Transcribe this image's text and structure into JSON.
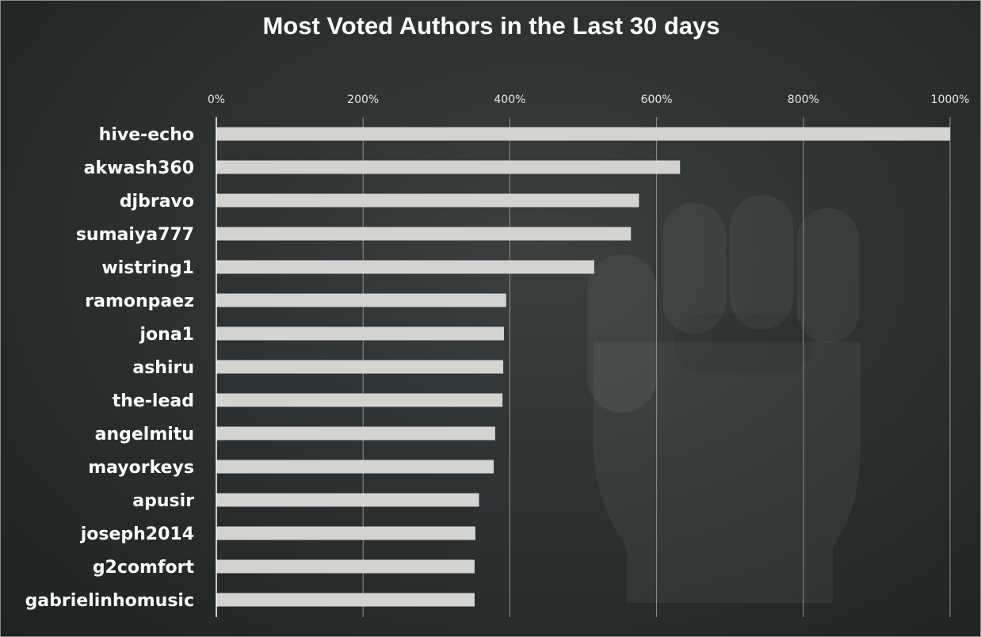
{
  "chart_data": {
    "type": "bar",
    "orientation": "horizontal",
    "title": "Most Voted Authors in the Last 30 days",
    "xlabel": "",
    "ylabel": "",
    "xlim": [
      0,
      1000
    ],
    "x_ticks": [
      0,
      200,
      400,
      600,
      800,
      1000
    ],
    "x_tick_labels": [
      "0%",
      "200%",
      "400%",
      "600%",
      "800%",
      "1000%"
    ],
    "grid": true,
    "categories": [
      "hive-echo",
      "akwash360",
      "djbravo",
      "sumaiya777",
      "wistring1",
      "ramonpaez",
      "jona1",
      "ashiru",
      "the-lead",
      "angelmitu",
      "mayorkeys",
      "apusir",
      "joseph2014",
      "g2comfort",
      "gabrielinhomusic"
    ],
    "values": [
      1000,
      632,
      576,
      565,
      515,
      395,
      392,
      391,
      390,
      380,
      378,
      358,
      353,
      352,
      352
    ],
    "bar_color": "#d3d3d0",
    "axis_color": "#ffffff",
    "grid_color": "#8e9292",
    "watermark": "raised-fist-icon"
  }
}
